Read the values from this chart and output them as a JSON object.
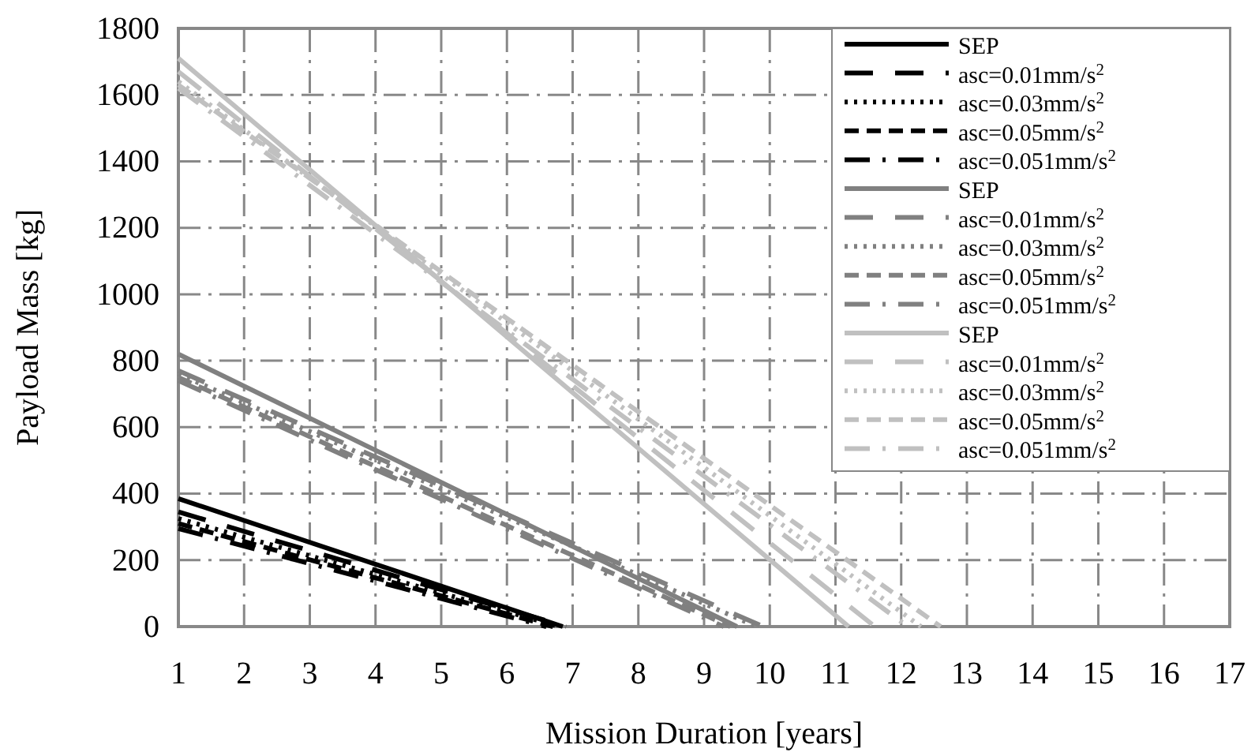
{
  "chart_data": {
    "type": "line",
    "xlabel": "Mission Duration [years]",
    "ylabel": "Payload Mass [kg]",
    "xlim": [
      1,
      17
    ],
    "ylim": [
      0,
      1800
    ],
    "xticks": [
      1,
      2,
      3,
      4,
      5,
      6,
      7,
      8,
      9,
      10,
      11,
      12,
      13,
      14,
      15,
      16,
      17
    ],
    "yticks": [
      0,
      200,
      400,
      600,
      800,
      1000,
      1200,
      1400,
      1600,
      1800
    ],
    "grid": true,
    "legend": "top right",
    "marker": "none",
    "series": [
      {
        "name": "SEP",
        "color": "#000000",
        "line_style": "solid",
        "x": [
          1,
          6.85
        ],
        "values": [
          385,
          0
        ]
      },
      {
        "name": "asc=0.01mm/s$^{2}$",
        "color": "#000000",
        "line_style": "longdash",
        "x": [
          1,
          6.9
        ],
        "values": [
          345,
          0
        ]
      },
      {
        "name": "asc=0.03mm/s$^{2}$",
        "color": "#000000",
        "line_style": "dotted",
        "x": [
          1,
          6.8
        ],
        "values": [
          325,
          0
        ]
      },
      {
        "name": "asc=0.05mm/s$^{2}$",
        "color": "#000000",
        "line_style": "dashed",
        "x": [
          1,
          6.7
        ],
        "values": [
          310,
          0
        ]
      },
      {
        "name": "asc=0.051mm/s$^{2}$",
        "color": "#000000",
        "line_style": "dashdot",
        "x": [
          1,
          6.6
        ],
        "values": [
          295,
          0
        ]
      },
      {
        "name": "SEP",
        "color": "#808080",
        "line_style": "solid",
        "x": [
          1,
          9.5
        ],
        "values": [
          820,
          0
        ]
      },
      {
        "name": "asc=0.01mm/s$^{2}$",
        "color": "#808080",
        "line_style": "longdash",
        "x": [
          1,
          9.9
        ],
        "values": [
          770,
          0
        ]
      },
      {
        "name": "asc=0.03mm/s$^{2}$",
        "color": "#808080",
        "line_style": "dotted",
        "x": [
          1,
          9.8
        ],
        "values": [
          760,
          0
        ]
      },
      {
        "name": "asc=0.05mm/s$^{2}$",
        "color": "#808080",
        "line_style": "dashed",
        "x": [
          1,
          9.4
        ],
        "values": [
          750,
          0
        ]
      },
      {
        "name": "asc=0.051mm/s$^{2}$",
        "color": "#808080",
        "line_style": "dashdot",
        "x": [
          1,
          9.3
        ],
        "values": [
          740,
          0
        ]
      },
      {
        "name": "SEP",
        "color": "#c0c0c0",
        "line_style": "solid",
        "x": [
          1,
          11.2
        ],
        "values": [
          1710,
          0
        ]
      },
      {
        "name": "asc=0.01mm/s$^{2}$",
        "color": "#c0c0c0",
        "line_style": "longdash",
        "x": [
          1,
          11.6
        ],
        "values": [
          1670,
          0
        ]
      },
      {
        "name": "asc=0.03mm/s$^{2}$",
        "color": "#c0c0c0",
        "line_style": "dotted",
        "x": [
          1,
          12.3
        ],
        "values": [
          1640,
          0
        ]
      },
      {
        "name": "asc=0.05mm/s$^{2}$",
        "color": "#c0c0c0",
        "line_style": "dashed",
        "x": [
          1,
          12.6
        ],
        "values": [
          1630,
          0
        ]
      },
      {
        "name": "asc=0.051mm/s$^{2}$",
        "color": "#c0c0c0",
        "line_style": "dashdot",
        "x": [
          1,
          12.1
        ],
        "values": [
          1620,
          0
        ]
      }
    ]
  }
}
